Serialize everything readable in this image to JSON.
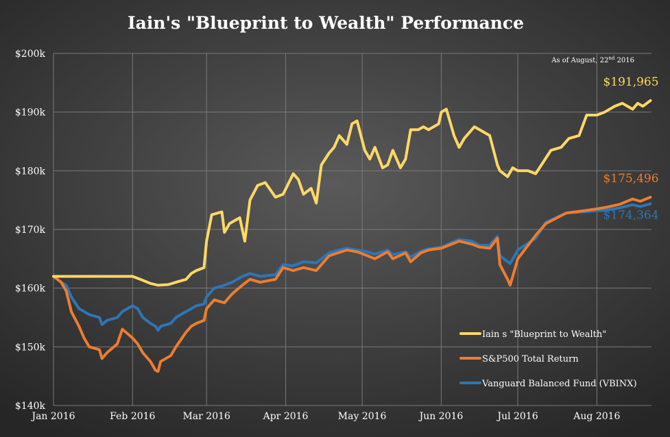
{
  "chart_data": {
    "type": "line",
    "title": "Iain's \"Blueprint to Wealth\" Performance",
    "note": "As of August, 22nd 2016",
    "ylim": [
      140000,
      200000
    ],
    "y_ticks": [
      {
        "value": 140000,
        "label": "$140k"
      },
      {
        "value": 150000,
        "label": "$150k"
      },
      {
        "value": 160000,
        "label": "$160k"
      },
      {
        "value": 170000,
        "label": "$170k"
      },
      {
        "value": 180000,
        "label": "$180k"
      },
      {
        "value": 190000,
        "label": "$190k"
      },
      {
        "value": 200000,
        "label": "$200k"
      }
    ],
    "x_ticks": [
      {
        "date": "2016-01-01",
        "label": "Jan 2016"
      },
      {
        "date": "2016-02-01",
        "label": "Feb 2016"
      },
      {
        "date": "2016-03-01",
        "label": "Mar 2016"
      },
      {
        "date": "2016-04-01",
        "label": "Apr 2016"
      },
      {
        "date": "2016-05-01",
        "label": "May 2016"
      },
      {
        "date": "2016-06-01",
        "label": "Jun 2016"
      },
      {
        "date": "2016-07-01",
        "label": "Jul 2016"
      },
      {
        "date": "2016-08-01",
        "label": "Aug 2016"
      }
    ],
    "x_range": [
      "2016-01-01",
      "2016-08-31"
    ],
    "grid": true,
    "legend_position": "bottom-right",
    "series": [
      {
        "name": "Iain s \"Blueprint to Wealth\"",
        "color": "#ffd966",
        "end_label": "$191,965",
        "x": [
          "2016-01-01",
          "2016-01-04",
          "2016-01-11",
          "2016-01-18",
          "2016-01-25",
          "2016-01-29",
          "2016-02-01",
          "2016-02-04",
          "2016-02-08",
          "2016-02-11",
          "2016-02-15",
          "2016-02-18",
          "2016-02-22",
          "2016-02-24",
          "2016-02-26",
          "2016-02-29",
          "2016-03-01",
          "2016-03-03",
          "2016-03-07",
          "2016-03-08",
          "2016-03-10",
          "2016-03-14",
          "2016-03-16",
          "2016-03-18",
          "2016-03-21",
          "2016-03-24",
          "2016-03-28",
          "2016-03-31",
          "2016-04-04",
          "2016-04-06",
          "2016-04-08",
          "2016-04-11",
          "2016-04-13",
          "2016-04-15",
          "2016-04-18",
          "2016-04-20",
          "2016-04-22",
          "2016-04-25",
          "2016-04-27",
          "2016-04-29",
          "2016-05-02",
          "2016-05-04",
          "2016-05-06",
          "2016-05-09",
          "2016-05-11",
          "2016-05-13",
          "2016-05-16",
          "2016-05-18",
          "2016-05-20",
          "2016-05-23",
          "2016-05-25",
          "2016-05-27",
          "2016-05-31",
          "2016-06-01",
          "2016-06-03",
          "2016-06-06",
          "2016-06-08",
          "2016-06-10",
          "2016-06-14",
          "2016-06-16",
          "2016-06-20",
          "2016-06-23",
          "2016-06-24",
          "2016-06-27",
          "2016-06-29",
          "2016-07-01",
          "2016-07-05",
          "2016-07-08",
          "2016-07-11",
          "2016-07-14",
          "2016-07-18",
          "2016-07-21",
          "2016-07-25",
          "2016-07-28",
          "2016-08-01",
          "2016-08-04",
          "2016-08-08",
          "2016-08-11",
          "2016-08-15",
          "2016-08-17",
          "2016-08-19",
          "2016-08-22"
        ],
        "y": [
          162000,
          162000,
          162000,
          162000,
          162000,
          162000,
          162000,
          161500,
          160800,
          160500,
          160600,
          161000,
          161500,
          162500,
          163000,
          163500,
          168000,
          172500,
          173000,
          169500,
          171000,
          172000,
          168000,
          175000,
          177500,
          178000,
          175500,
          176000,
          179500,
          178500,
          176000,
          177000,
          174500,
          181000,
          183000,
          184000,
          186000,
          184500,
          188000,
          188500,
          183500,
          182000,
          184000,
          180500,
          181000,
          183500,
          180500,
          182000,
          187000,
          187000,
          187500,
          187000,
          188000,
          190000,
          190500,
          186000,
          184000,
          185500,
          187500,
          187000,
          186000,
          181000,
          180000,
          179000,
          180500,
          180000,
          180000,
          179500,
          181500,
          183500,
          184000,
          185500,
          186000,
          189500,
          189500,
          190000,
          191000,
          191500,
          190500,
          191500,
          191000,
          191965
        ]
      },
      {
        "name": "S&P500 Total Return",
        "color": "#ed7d31",
        "end_label": "$175,496",
        "x": [
          "2016-01-01",
          "2016-01-04",
          "2016-01-06",
          "2016-01-08",
          "2016-01-11",
          "2016-01-13",
          "2016-01-15",
          "2016-01-19",
          "2016-01-20",
          "2016-01-22",
          "2016-01-26",
          "2016-01-28",
          "2016-02-01",
          "2016-02-03",
          "2016-02-05",
          "2016-02-08",
          "2016-02-10",
          "2016-02-11",
          "2016-02-12",
          "2016-02-16",
          "2016-02-18",
          "2016-02-22",
          "2016-02-24",
          "2016-02-26",
          "2016-02-29",
          "2016-03-01",
          "2016-03-04",
          "2016-03-08",
          "2016-03-11",
          "2016-03-15",
          "2016-03-18",
          "2016-03-22",
          "2016-03-28",
          "2016-03-31",
          "2016-04-04",
          "2016-04-08",
          "2016-04-13",
          "2016-04-18",
          "2016-04-20",
          "2016-04-25",
          "2016-04-29",
          "2016-05-02",
          "2016-05-06",
          "2016-05-11",
          "2016-05-13",
          "2016-05-18",
          "2016-05-20",
          "2016-05-24",
          "2016-05-27",
          "2016-06-01",
          "2016-06-08",
          "2016-06-13",
          "2016-06-16",
          "2016-06-20",
          "2016-06-23",
          "2016-06-24",
          "2016-06-27",
          "2016-06-28",
          "2016-07-01",
          "2016-07-08",
          "2016-07-12",
          "2016-07-20",
          "2016-07-27",
          "2016-08-01",
          "2016-08-05",
          "2016-08-10",
          "2016-08-15",
          "2016-08-18",
          "2016-08-22"
        ],
        "y": [
          162000,
          161000,
          159500,
          156000,
          153500,
          151500,
          150000,
          149500,
          148000,
          149000,
          150500,
          153000,
          151500,
          150500,
          149000,
          147500,
          146000,
          145800,
          147500,
          148500,
          150000,
          152500,
          153500,
          154000,
          154500,
          156500,
          158000,
          157500,
          159000,
          160500,
          161500,
          161000,
          161500,
          163500,
          163000,
          163500,
          163000,
          165500,
          165800,
          166500,
          166200,
          165700,
          165000,
          166200,
          165000,
          166000,
          164500,
          166000,
          166500,
          166800,
          168000,
          167500,
          167000,
          166800,
          168500,
          164000,
          161500,
          160500,
          165000,
          169000,
          171000,
          172800,
          173200,
          173500,
          173800,
          174300,
          175200,
          174800,
          175496
        ]
      },
      {
        "name": "Vanguard Balanced Fund (VBINX)",
        "color": "#2e75b6",
        "end_label": "$174,364",
        "x": [
          "2016-01-01",
          "2016-01-04",
          "2016-01-06",
          "2016-01-08",
          "2016-01-11",
          "2016-01-13",
          "2016-01-15",
          "2016-01-19",
          "2016-01-20",
          "2016-01-22",
          "2016-01-26",
          "2016-01-28",
          "2016-02-01",
          "2016-02-03",
          "2016-02-05",
          "2016-02-08",
          "2016-02-10",
          "2016-02-11",
          "2016-02-12",
          "2016-02-16",
          "2016-02-18",
          "2016-02-22",
          "2016-02-24",
          "2016-02-26",
          "2016-02-29",
          "2016-03-01",
          "2016-03-04",
          "2016-03-08",
          "2016-03-11",
          "2016-03-15",
          "2016-03-18",
          "2016-03-22",
          "2016-03-28",
          "2016-03-31",
          "2016-04-04",
          "2016-04-08",
          "2016-04-13",
          "2016-04-18",
          "2016-04-20",
          "2016-04-25",
          "2016-04-29",
          "2016-05-02",
          "2016-05-06",
          "2016-05-11",
          "2016-05-13",
          "2016-05-18",
          "2016-05-20",
          "2016-05-24",
          "2016-05-27",
          "2016-06-01",
          "2016-06-08",
          "2016-06-13",
          "2016-06-16",
          "2016-06-20",
          "2016-06-23",
          "2016-06-24",
          "2016-06-27",
          "2016-06-28",
          "2016-07-01",
          "2016-07-08",
          "2016-07-12",
          "2016-07-20",
          "2016-07-27",
          "2016-08-01",
          "2016-08-05",
          "2016-08-10",
          "2016-08-15",
          "2016-08-18",
          "2016-08-22"
        ],
        "y": [
          162000,
          161000,
          160500,
          158500,
          156500,
          156000,
          155500,
          155000,
          153800,
          154500,
          155000,
          156000,
          157000,
          156500,
          155000,
          154000,
          153500,
          152800,
          153500,
          154000,
          155000,
          156000,
          156500,
          157000,
          157300,
          158500,
          160000,
          160500,
          161000,
          162000,
          162500,
          162000,
          162300,
          164000,
          163800,
          164500,
          164300,
          166000,
          166300,
          166800,
          166500,
          166300,
          165800,
          166500,
          165700,
          166200,
          165300,
          166300,
          166700,
          167000,
          168300,
          168000,
          167300,
          167300,
          168800,
          165500,
          164500,
          164200,
          166500,
          168500,
          171200,
          172800,
          173000,
          173200,
          173300,
          173700,
          174200,
          173900,
          174364
        ]
      }
    ]
  }
}
